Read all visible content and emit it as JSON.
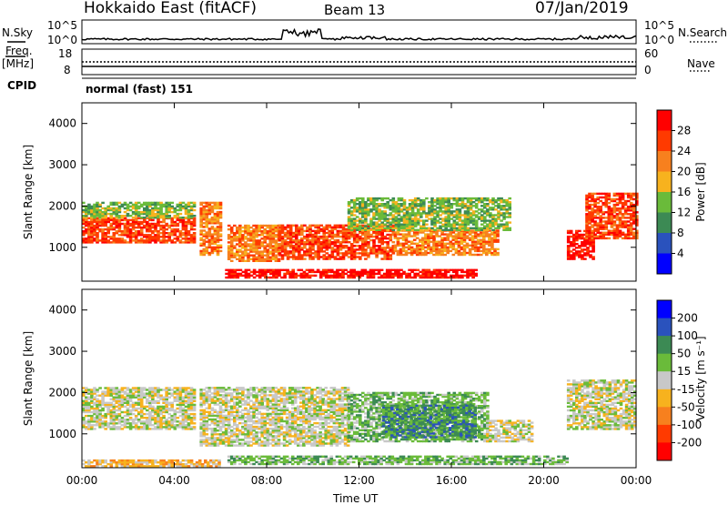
{
  "header": {
    "station": "Hokkaido East (fitACF)",
    "beam": "Beam 13",
    "date": "07/Jan/2019"
  },
  "summary": {
    "nsky_label": "N.Sky",
    "nsearch_label": "N.Search",
    "noise_ticks": [
      "10^5",
      "10^0"
    ],
    "freq_label_1": "Freq.",
    "freq_label_2": "[MHz]",
    "freq_ticks": [
      "18",
      "8"
    ],
    "nave_label": "Nave",
    "nave_ticks": [
      "60",
      "0"
    ],
    "cpid_label": "CPID",
    "cpid_value": "normal (fast) 151"
  },
  "colors": {
    "power": [
      "#0000ff",
      "#2a52bd",
      "#3c8a54",
      "#6abb3a",
      "#f7b21e",
      "#f7801e",
      "#ff3a00",
      "#ff0000"
    ],
    "velocity": [
      "#ff0000",
      "#ff3a00",
      "#f7801e",
      "#f7b21e",
      "#c8c8c8",
      "#6abb3a",
      "#3c8a54",
      "#2a52bd",
      "#0000ff"
    ]
  },
  "chart_data": [
    {
      "type": "heatmap",
      "quantity": "power",
      "ylabel": "Slant Range [km]",
      "yticks": [
        1000,
        2000,
        3000,
        4000
      ],
      "ylim": [
        180,
        4500
      ],
      "xlim": [
        0,
        24
      ],
      "xticks": [
        "00:00",
        "04:00",
        "08:00",
        "12:00",
        "16:00",
        "20:00",
        "00:00"
      ],
      "colorbar": {
        "label": "Power [dB]",
        "ticks": [
          4,
          8,
          12,
          16,
          20,
          24,
          28
        ],
        "range": [
          0,
          32
        ]
      },
      "echo_regions": [
        {
          "t0": 0.0,
          "t1": 4.9,
          "r0": 1100,
          "r1": 1700,
          "level": 6
        },
        {
          "t0": 0.0,
          "t1": 4.9,
          "r0": 1700,
          "r1": 2100,
          "level": 3
        },
        {
          "t0": 5.1,
          "t1": 6.0,
          "r0": 800,
          "r1": 2100,
          "level": 5
        },
        {
          "t0": 6.3,
          "t1": 8.5,
          "r0": 650,
          "r1": 1550,
          "level": 5
        },
        {
          "t0": 8.5,
          "t1": 13.5,
          "r0": 700,
          "r1": 1550,
          "level": 6
        },
        {
          "t0": 13.5,
          "t1": 18.0,
          "r0": 800,
          "r1": 1400,
          "level": 5
        },
        {
          "t0": 11.5,
          "t1": 18.5,
          "r0": 1400,
          "r1": 2200,
          "level": 3
        },
        {
          "t0": 6.2,
          "t1": 17.0,
          "r0": 250,
          "r1": 450,
          "level": 7
        },
        {
          "t0": 21.0,
          "t1": 22.1,
          "r0": 700,
          "r1": 1400,
          "level": 7
        },
        {
          "t0": 21.8,
          "t1": 24.0,
          "r0": 1200,
          "r1": 2300,
          "level": 6
        }
      ]
    },
    {
      "type": "heatmap",
      "quantity": "velocity",
      "ylabel": "Slant Range [km]",
      "yticks": [
        1000,
        2000,
        3000,
        4000
      ],
      "ylim": [
        180,
        4500
      ],
      "xlim": [
        0,
        24
      ],
      "xticks": [
        "00:00",
        "04:00",
        "08:00",
        "12:00",
        "16:00",
        "20:00",
        "00:00"
      ],
      "xlabel": "Time UT",
      "colorbar": {
        "label": "Velocity [m s⁻¹]",
        "ticks": [
          200,
          100,
          50,
          15,
          -15,
          -50,
          -100,
          -200
        ],
        "range": [
          -250,
          250
        ]
      },
      "echo_regions": [
        {
          "t0": 0.0,
          "t1": 4.9,
          "r0": 1100,
          "r1": 2100,
          "level": 4
        },
        {
          "t0": 5.1,
          "t1": 11.5,
          "r0": 700,
          "r1": 2100,
          "level": 4
        },
        {
          "t0": 11.5,
          "t1": 17.5,
          "r0": 800,
          "r1": 2000,
          "level": 5
        },
        {
          "t0": 13.0,
          "t1": 17.0,
          "r0": 900,
          "r1": 1700,
          "level": 6
        },
        {
          "t0": 17.5,
          "t1": 19.5,
          "r0": 800,
          "r1": 1300,
          "level": 4
        },
        {
          "t0": 6.3,
          "t1": 21.0,
          "r0": 250,
          "r1": 450,
          "level": 5
        },
        {
          "t0": 0.0,
          "t1": 6.0,
          "r0": 200,
          "r1": 350,
          "level": 3
        },
        {
          "t0": 21.0,
          "t1": 24.0,
          "r0": 1100,
          "r1": 2300,
          "level": 4
        }
      ]
    }
  ]
}
